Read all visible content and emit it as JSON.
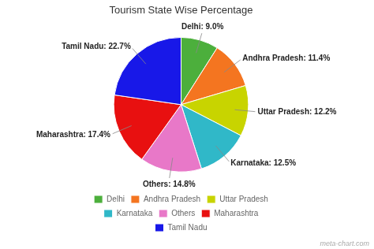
{
  "chart_data": {
    "type": "pie",
    "title": "Tourism State Wise Percentage",
    "categories": [
      "Delhi",
      "Andhra Pradesh",
      "Uttar Pradesh",
      "Karnataka",
      "Others",
      "Maharashtra",
      "Tamil Nadu"
    ],
    "values": [
      9.0,
      11.4,
      12.2,
      12.5,
      14.8,
      17.4,
      22.7
    ],
    "value_labels": [
      "Delhi: 9.0%",
      "Andhra Pradesh: 11.4%",
      "Uttar Pradesh: 12.2%",
      "Karnataka: 12.5%",
      "Others: 14.8%",
      "Maharashtra: 17.4%",
      "Tamil Nadu: 22.7%"
    ],
    "data_labels": true,
    "colors": [
      "#4caf3c",
      "#f47520",
      "#c8d400",
      "#30b8c8",
      "#e878c8",
      "#e81010",
      "#1818e8"
    ],
    "legend": "bottom",
    "annotations": [
      "meta-chart.com"
    ]
  }
}
